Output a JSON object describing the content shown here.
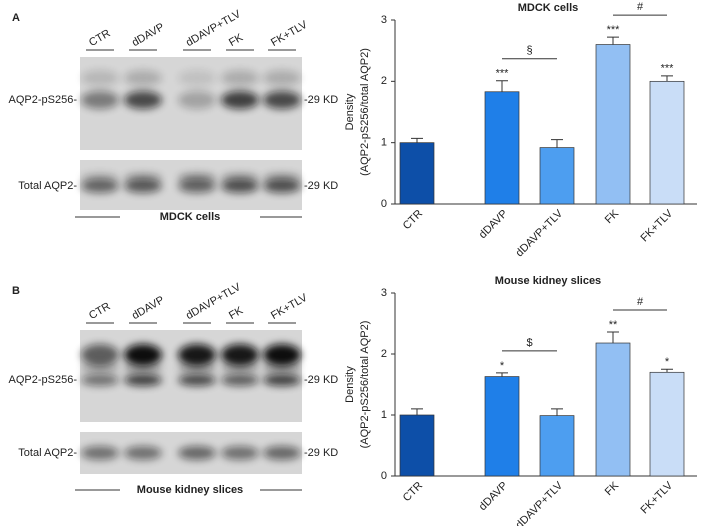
{
  "chart_data": [
    {
      "type": "bar",
      "title": "MDCK cells",
      "ylabel": [
        "Density",
        "(AQP2-pS256/total AQP2)"
      ],
      "categories": [
        "CTR",
        "dDAVP",
        "dDAVP+TLV",
        "FK",
        "FK+TLV"
      ],
      "values": [
        1.0,
        1.83,
        0.92,
        2.6,
        2.0
      ],
      "errors": [
        0.07,
        0.18,
        0.13,
        0.12,
        0.09
      ],
      "significance": [
        null,
        "***",
        null,
        "***",
        "***"
      ],
      "colors": [
        "#0d4fa8",
        "#1f7fe8",
        "#4d9ef0",
        "#92bff3",
        "#c9ddf7"
      ],
      "brackets": [
        {
          "label": "§",
          "bars": [
            1,
            2
          ]
        },
        {
          "label": "#",
          "bars": [
            3,
            4
          ]
        }
      ],
      "ylim": [
        0,
        3
      ],
      "yticks": [
        0,
        1,
        2,
        3
      ]
    },
    {
      "type": "bar",
      "title": "Mouse kidney slices",
      "ylabel": [
        "Density",
        "(AQP2-pS256/total AQP2)"
      ],
      "categories": [
        "CTR",
        "dDAVP",
        "dDAVP+TLV",
        "FK",
        "FK+TLV"
      ],
      "values": [
        1.0,
        1.63,
        0.99,
        2.18,
        1.7
      ],
      "errors": [
        0.1,
        0.06,
        0.11,
        0.18,
        0.05
      ],
      "significance": [
        null,
        "*",
        null,
        "**",
        "*"
      ],
      "colors": [
        "#0d4fa8",
        "#1f7fe8",
        "#4d9ef0",
        "#92bff3",
        "#c9ddf7"
      ],
      "brackets": [
        {
          "label": "$",
          "bars": [
            1,
            2
          ]
        },
        {
          "label": "#",
          "bars": [
            3,
            4
          ]
        }
      ],
      "ylim": [
        0,
        3
      ],
      "yticks": [
        0,
        1,
        2,
        3
      ]
    }
  ],
  "figure_panels": [
    {
      "label": "A",
      "lanes": [
        "CTR",
        "dDAVP",
        "dDAVP+TLV",
        "FK",
        "FK+TLV"
      ],
      "rows": [
        "AQP2-pS256-",
        "Total AQP2-"
      ],
      "markers": [
        "-29 KD",
        "-29 KD"
      ],
      "caption": "MDCK cells"
    },
    {
      "label": "B",
      "lanes": [
        "CTR",
        "dDAVP",
        "dDAVP+TLV",
        "FK",
        "FK+TLV"
      ],
      "rows": [
        "AQP2-pS256-",
        "Total AQP2-"
      ],
      "markers": [
        "-29 KD",
        "-29 KD"
      ],
      "caption": "Mouse kidney slices"
    }
  ]
}
